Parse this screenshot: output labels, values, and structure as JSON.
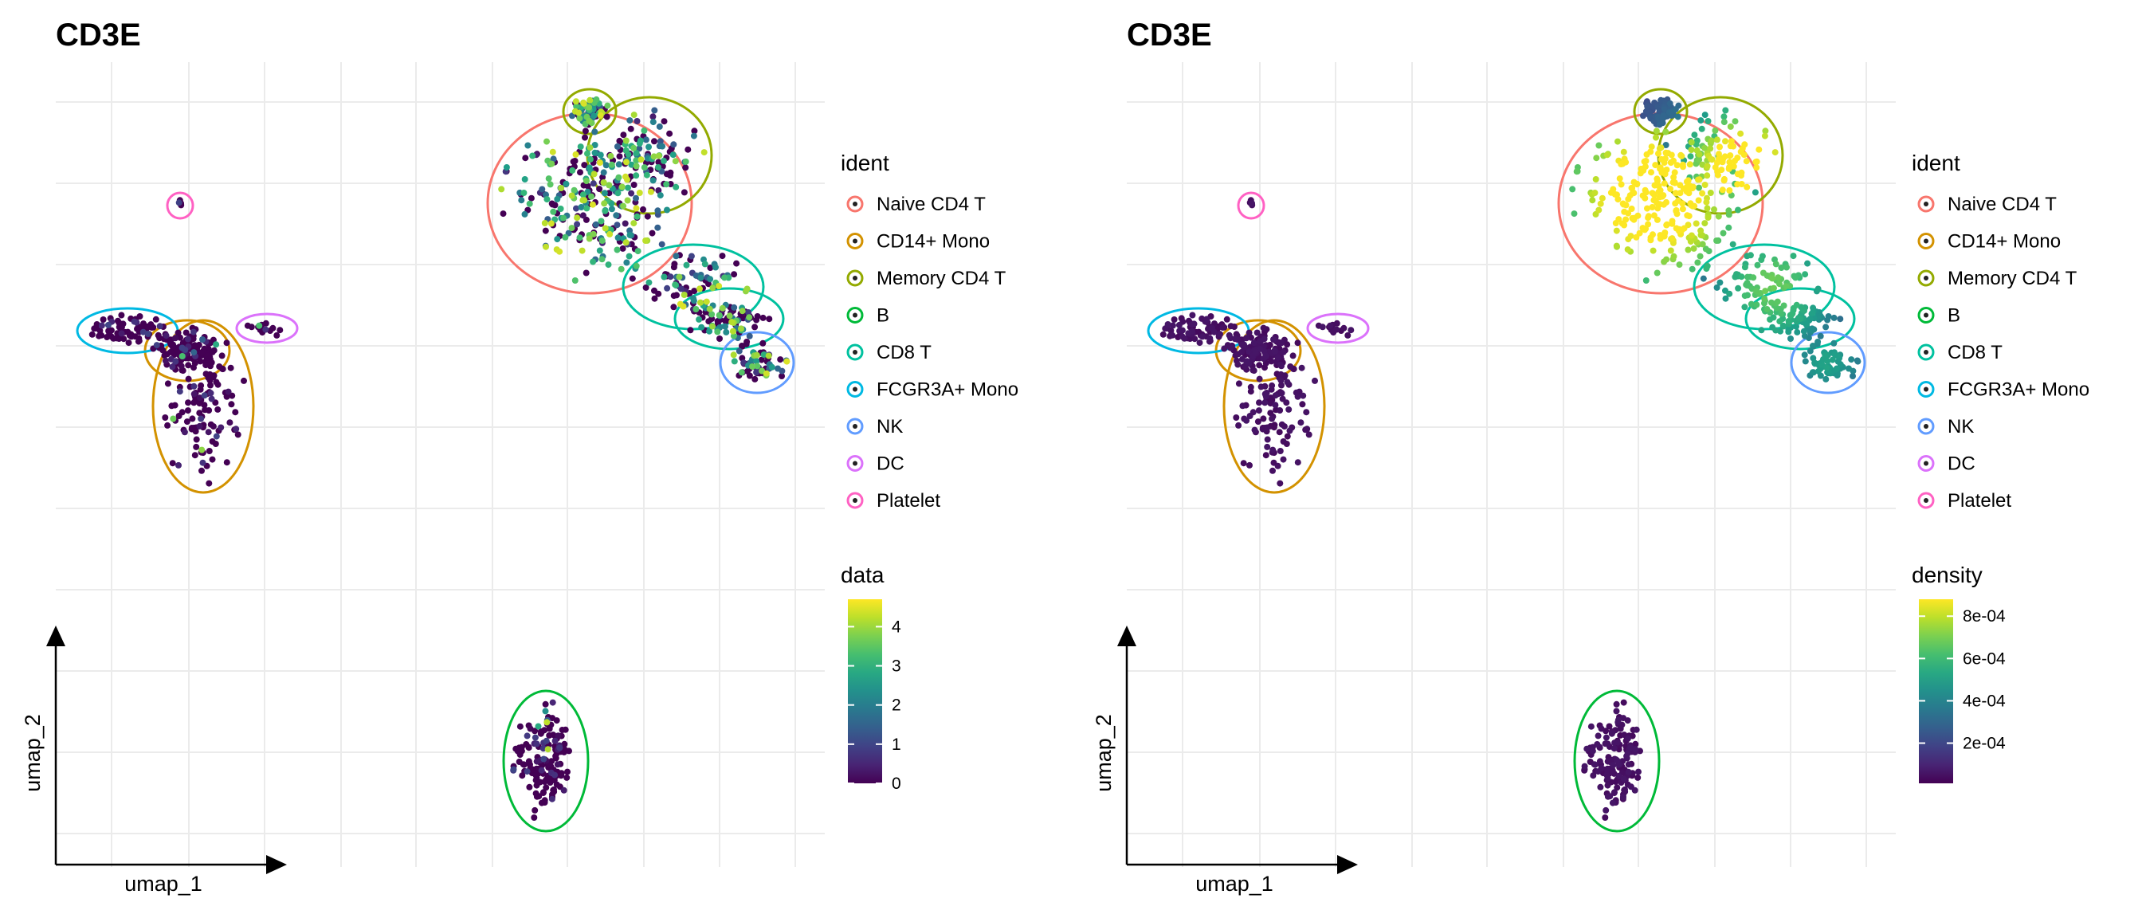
{
  "chart_data": [
    {
      "type": "scatter",
      "title": "CD3E",
      "xlabel": "umap_1",
      "ylabel": "umap_2",
      "grid": true,
      "color_by": "data",
      "legend_placement": "right",
      "ident_legend": {
        "title": "ident",
        "entries": [
          {
            "label": "Naive CD4 T",
            "color": "#F8766D"
          },
          {
            "label": "CD14+ Mono",
            "color": "#D39200"
          },
          {
            "label": "Memory CD4 T",
            "color": "#93AA00"
          },
          {
            "label": "B",
            "color": "#00BA38"
          },
          {
            "label": "CD8 T",
            "color": "#00C19F"
          },
          {
            "label": "FCGR3A+ Mono",
            "color": "#00B9E3"
          },
          {
            "label": "NK",
            "color": "#619CFF"
          },
          {
            "label": "DC",
            "color": "#DB72FB"
          },
          {
            "label": "Platelet",
            "color": "#FF61C3"
          }
        ]
      },
      "colorbar": {
        "title": "data",
        "range": [
          0,
          4.7
        ],
        "ticks": [
          0,
          1,
          2,
          3,
          4
        ],
        "tick_labels": [
          "0",
          "1",
          "2",
          "3",
          "4"
        ]
      }
    },
    {
      "type": "scatter",
      "title": "CD3E",
      "xlabel": "umap_1",
      "ylabel": "umap_2",
      "grid": true,
      "color_by": "density",
      "legend_placement": "right",
      "ident_legend": {
        "title": "ident",
        "entries": [
          {
            "label": "Naive CD4 T",
            "color": "#F8766D"
          },
          {
            "label": "CD14+ Mono",
            "color": "#D39200"
          },
          {
            "label": "Memory CD4 T",
            "color": "#93AA00"
          },
          {
            "label": "B",
            "color": "#00BA38"
          },
          {
            "label": "CD8 T",
            "color": "#00C19F"
          },
          {
            "label": "FCGR3A+ Mono",
            "color": "#00B9E3"
          },
          {
            "label": "NK",
            "color": "#619CFF"
          },
          {
            "label": "DC",
            "color": "#DB72FB"
          },
          {
            "label": "Platelet",
            "color": "#FF61C3"
          }
        ]
      },
      "colorbar": {
        "title": "density",
        "range": [
          1e-05,
          0.00088
        ],
        "ticks": [
          0.0002,
          0.0004,
          0.0006,
          0.0008
        ],
        "tick_labels": [
          "2e-04",
          "4e-04",
          "6e-04",
          "8e-04"
        ]
      }
    }
  ]
}
